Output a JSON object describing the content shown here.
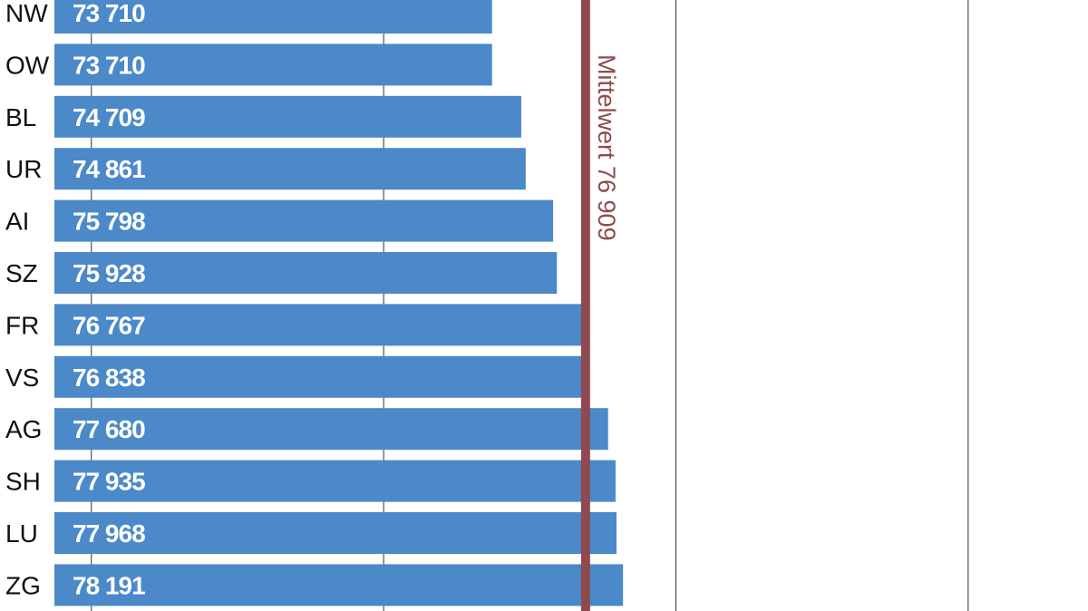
{
  "chart_data": {
    "type": "bar",
    "orientation": "horizontal",
    "categories": [
      "NW",
      "OW",
      "BL",
      "UR",
      "AI",
      "SZ",
      "FR",
      "VS",
      "AG",
      "SH",
      "LU",
      "ZG"
    ],
    "values": [
      73710,
      73710,
      74709,
      74861,
      75798,
      75928,
      76767,
      76838,
      77680,
      77935,
      77968,
      78191
    ],
    "value_labels": [
      "73 710",
      "73 710",
      "74 709",
      "74 861",
      "75 798",
      "75 928",
      "76 767",
      "76 838",
      "77 680",
      "77 935",
      "77 968",
      "78 191"
    ],
    "xlim": [
      58735,
      94100
    ],
    "gridlines": [
      60000,
      70000,
      80000,
      90000
    ],
    "grid": true,
    "reference_line": {
      "value": 76909,
      "label": "Mittelwert 76 909"
    },
    "colors": {
      "bar": "#4b89c9",
      "mean_line": "#8f4a4f",
      "grid": "#333333"
    }
  }
}
